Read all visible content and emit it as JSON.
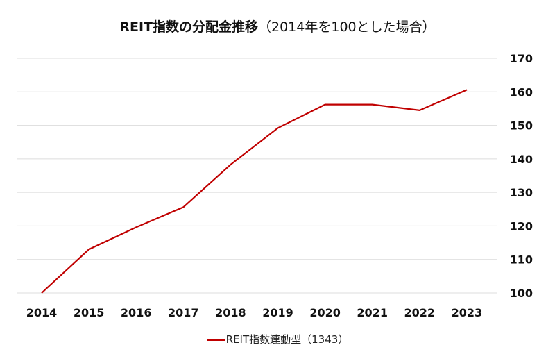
{
  "chart_data": {
    "type": "line",
    "title_bold": "REIT指数の分配金推移",
    "title_rest": "（2014年を100とした場合）",
    "categories": [
      "2014",
      "2015",
      "2016",
      "2017",
      "2018",
      "2019",
      "2020",
      "2021",
      "2022",
      "2023"
    ],
    "series": [
      {
        "name": "REIT指数連動型（1343）",
        "values": [
          100,
          113.0,
          119.6,
          125.6,
          138.3,
          149.2,
          156.2,
          156.2,
          154.5,
          160.6
        ],
        "color": "#c00000"
      }
    ],
    "ylim": [
      100,
      170
    ],
    "yticks": [
      100,
      110,
      120,
      130,
      140,
      150,
      160,
      170
    ],
    "y_axis_side": "right",
    "grid": true,
    "legend": "bottom"
  }
}
